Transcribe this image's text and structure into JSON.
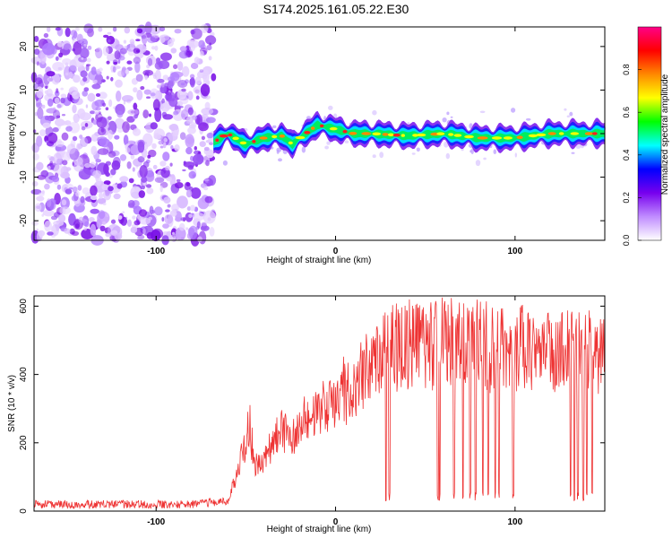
{
  "title": "S174.2025.161.05.22.E30",
  "chart_data": [
    {
      "type": "heatmap",
      "xlabel": "Height of straight line (km)",
      "ylabel": "Frequency (Hz)",
      "xlim": [
        -168,
        150
      ],
      "ylim": [
        -24.5,
        24.5
      ],
      "xticks": [
        -100,
        0,
        100
      ],
      "yticks": [
        -20,
        -10,
        0,
        10,
        20
      ],
      "noise_region_x": [
        -168,
        -68
      ],
      "colorbar": {
        "label": "Normalized spectral amplitude",
        "range": [
          0,
          1
        ],
        "ticks": [
          "0.0",
          "0.2",
          "0.4",
          "0.6",
          "0.8"
        ],
        "tick_values": [
          0.0,
          0.2,
          0.4,
          0.6,
          0.8
        ],
        "colors": [
          "#ffffff",
          "#c08cff",
          "#7700ee",
          "#0000ff",
          "#00ffff",
          "#00ff00",
          "#ffff00",
          "#ff8800",
          "#ff0000",
          "#ff0088"
        ]
      },
      "ridge": {
        "x": [
          -68,
          -60,
          -50,
          -40,
          -30,
          -24,
          -20,
          -10,
          -5,
          0,
          10,
          20,
          40,
          60,
          80,
          100,
          120,
          140,
          150
        ],
        "frequency": [
          -2,
          0,
          -2.5,
          -1,
          -0.5,
          -2.5,
          -1,
          2,
          1.5,
          1,
          0,
          0,
          -0.5,
          0,
          -1,
          -1,
          0,
          0,
          0
        ]
      }
    },
    {
      "type": "line",
      "xlabel": "Height of straight line (km)",
      "ylabel": "SNR (10 * v/v)",
      "xlim": [
        -168,
        150
      ],
      "ylim": [
        0,
        630
      ],
      "xticks": [
        -100,
        0,
        100
      ],
      "yticks": [
        0,
        200,
        400,
        600
      ],
      "color": "#ee3333",
      "series": [
        {
          "x": [
            -168,
            -140,
            -110,
            -80,
            -60,
            -55,
            -50,
            -48,
            -45,
            -40,
            -35,
            -30,
            -25,
            -18,
            -10,
            0,
            10,
            20,
            30,
            40,
            50,
            60,
            70,
            80,
            90,
            100,
            110,
            120,
            130,
            140,
            150
          ],
          "values": [
            20,
            20,
            20,
            20,
            30,
            110,
            200,
            260,
            130,
            150,
            200,
            240,
            200,
            260,
            290,
            320,
            370,
            420,
            470,
            490,
            480,
            500,
            480,
            490,
            470,
            480,
            470,
            470,
            480,
            460,
            480
          ]
        }
      ],
      "dips_x": [
        28,
        30,
        57,
        58,
        66,
        71,
        75,
        78,
        82,
        85,
        89,
        91,
        99,
        131,
        133,
        135,
        138,
        140,
        143
      ]
    }
  ]
}
